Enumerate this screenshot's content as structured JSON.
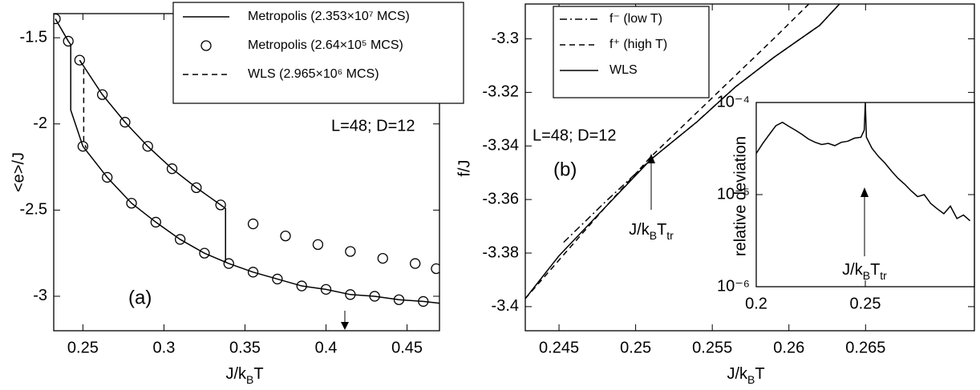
{
  "chart_data": [
    {
      "type": "line",
      "x_label": [
        "J/k",
        "B",
        "T"
      ],
      "y_label": "<e>/J",
      "xlim": [
        0.232,
        0.47
      ],
      "ylim": [
        -3.2,
        -1.36
      ],
      "xticks": [
        0.25,
        0.3,
        0.35,
        0.4,
        0.45
      ],
      "yticks": [
        -3,
        -2.5,
        -2,
        -1.5
      ],
      "legend": "upper right",
      "annotations": [
        "L=48; D=12",
        "(a)"
      ],
      "series": [
        {
          "name": "Metropolis (2.353×10⁷ MCS)",
          "color": "#000000",
          "style": "solid",
          "x": [
            0.233,
            0.241,
            0.2425,
            0.2425,
            0.25,
            0.265,
            0.28,
            0.295,
            0.31,
            0.325,
            0.34,
            0.355,
            0.37,
            0.385,
            0.4,
            0.415,
            0.43,
            0.445,
            0.46,
            0.47,
            null,
            0.248,
            0.262,
            0.276,
            0.29,
            0.305,
            0.32,
            0.338,
            0.338
          ],
          "values": [
            -1.39,
            -1.52,
            -1.54,
            -1.92,
            -2.13,
            -2.31,
            -2.46,
            -2.57,
            -2.67,
            -2.75,
            -2.81,
            -2.86,
            -2.9,
            -2.94,
            -2.96,
            -2.99,
            -3.0,
            -3.02,
            -3.03,
            -3.04,
            null,
            -1.63,
            -1.83,
            -1.99,
            -2.13,
            -2.26,
            -2.37,
            -2.49,
            -2.8
          ]
        },
        {
          "name": "Metropolis (2.64×10⁵ MCS)",
          "color": "#000000",
          "style": "circle",
          "x": [
            0.233,
            0.241,
            0.248,
            0.262,
            0.276,
            0.29,
            0.305,
            0.32,
            0.335,
            0.355,
            0.375,
            0.395,
            0.415,
            0.435,
            0.455,
            0.468,
            0.25,
            0.265,
            0.28,
            0.295,
            0.31,
            0.325,
            0.34,
            0.355,
            0.37,
            0.385,
            0.4,
            0.415,
            0.43,
            0.445,
            0.46
          ],
          "values": [
            -1.39,
            -1.52,
            -1.63,
            -1.83,
            -1.99,
            -2.13,
            -2.26,
            -2.37,
            -2.47,
            -2.58,
            -2.65,
            -2.7,
            -2.74,
            -2.78,
            -2.81,
            -2.84,
            -2.13,
            -2.31,
            -2.46,
            -2.57,
            -2.67,
            -2.75,
            -2.81,
            -2.86,
            -2.9,
            -2.94,
            -2.96,
            -2.99,
            -3.0,
            -3.02,
            -3.03
          ]
        },
        {
          "name": "WLS (2.965×10⁶ MCS)",
          "color": "#000000",
          "style": "dashed",
          "x": [
            0.248,
            0.2505,
            0.2505,
            0.252
          ],
          "values": [
            -1.63,
            -1.67,
            -2.1,
            -2.14
          ]
        }
      ]
    },
    {
      "type": "line",
      "x_label": [
        "J/k",
        "B",
        "T"
      ],
      "y_label": "f/J",
      "xlim": [
        0.2428,
        0.2721
      ],
      "ylim": [
        -3.409,
        -3.287
      ],
      "xticks": [
        0.245,
        0.25,
        0.255,
        0.26,
        0.265
      ],
      "yticks": [
        -3.4,
        -3.38,
        -3.36,
        -3.34,
        -3.32,
        -3.3
      ],
      "legend": "upper left",
      "annotations": [
        "L=48; D=12",
        "(b)"
      ],
      "arrow_label": [
        "J/k",
        "B",
        "T",
        "tr"
      ],
      "series": [
        {
          "name": "f⁻ (low T)",
          "color": "#000000",
          "style": "dashdot",
          "x": [
            0.2453,
            0.248,
            0.251,
            0.254,
            0.2565,
            0.259,
            0.262,
            0.2633
          ],
          "values": [
            -3.376,
            -3.361,
            -3.345,
            -3.331,
            -3.318,
            -3.307,
            -3.295,
            -3.287
          ]
        },
        {
          "name": "f⁺ (high T)",
          "color": "#000000",
          "style": "dashed",
          "x": [
            0.2428,
            0.248,
            0.251,
            0.255,
            0.259,
            0.2613
          ],
          "values": [
            -3.397,
            -3.363,
            -3.344,
            -3.322,
            -3.3,
            -3.287
          ]
        },
        {
          "name": "WLS",
          "color": "#000000",
          "style": "solid",
          "x": [
            0.2428,
            0.245,
            0.248,
            0.251,
            0.254,
            0.2565,
            0.259,
            0.262,
            0.2633
          ],
          "values": [
            -3.397,
            -3.381,
            -3.363,
            -3.345,
            -3.331,
            -3.318,
            -3.307,
            -3.295,
            -3.287
          ]
        }
      ]
    },
    {
      "type": "line",
      "ylog": true,
      "y_label": "relative deviation",
      "xlim": [
        0.2,
        0.3
      ],
      "ylim": [
        1e-06,
        0.0001
      ],
      "xticks": [
        0.2,
        0.25
      ],
      "yticks": [
        {
          "value": 1e-06,
          "label": "10⁻⁶"
        },
        {
          "value": 1e-05,
          "label": "10⁻⁵"
        },
        {
          "value": 0.0001,
          "label": "10⁻⁴"
        }
      ],
      "arrow_label": [
        "J/k",
        "B",
        "T",
        "tr"
      ],
      "series": [
        {
          "color": "#000000",
          "style": "solid",
          "x": [
            0.2,
            0.203,
            0.206,
            0.209,
            0.212,
            0.215,
            0.218,
            0.221,
            0.224,
            0.227,
            0.23,
            0.233,
            0.236,
            0.239,
            0.242,
            0.245,
            0.248,
            0.2495,
            0.25,
            0.2505,
            0.253,
            0.256,
            0.259,
            0.262,
            0.265,
            0.268,
            0.271,
            0.274,
            0.277,
            0.28,
            0.283,
            0.286,
            0.289,
            0.292,
            0.295,
            0.298
          ],
          "values": [
            2.8e-05,
            3.6e-05,
            4.5e-05,
            5.6e-05,
            6.1e-05,
            5.5e-05,
            5e-05,
            4.5e-05,
            4e-05,
            3.7e-05,
            3.5e-05,
            3.6e-05,
            3.4e-05,
            3.7e-05,
            3.8e-05,
            4.1e-05,
            4.2e-05,
            5e-05,
            0.0001,
            4.2e-05,
            3.2e-05,
            2.6e-05,
            2.2e-05,
            1.8e-05,
            1.5e-05,
            1.3e-05,
            1.1e-05,
            9.5e-06,
            1e-05,
            8e-06,
            7e-06,
            6.2e-06,
            7.5e-06,
            5.5e-06,
            6e-06,
            5.2e-06
          ]
        }
      ]
    }
  ]
}
